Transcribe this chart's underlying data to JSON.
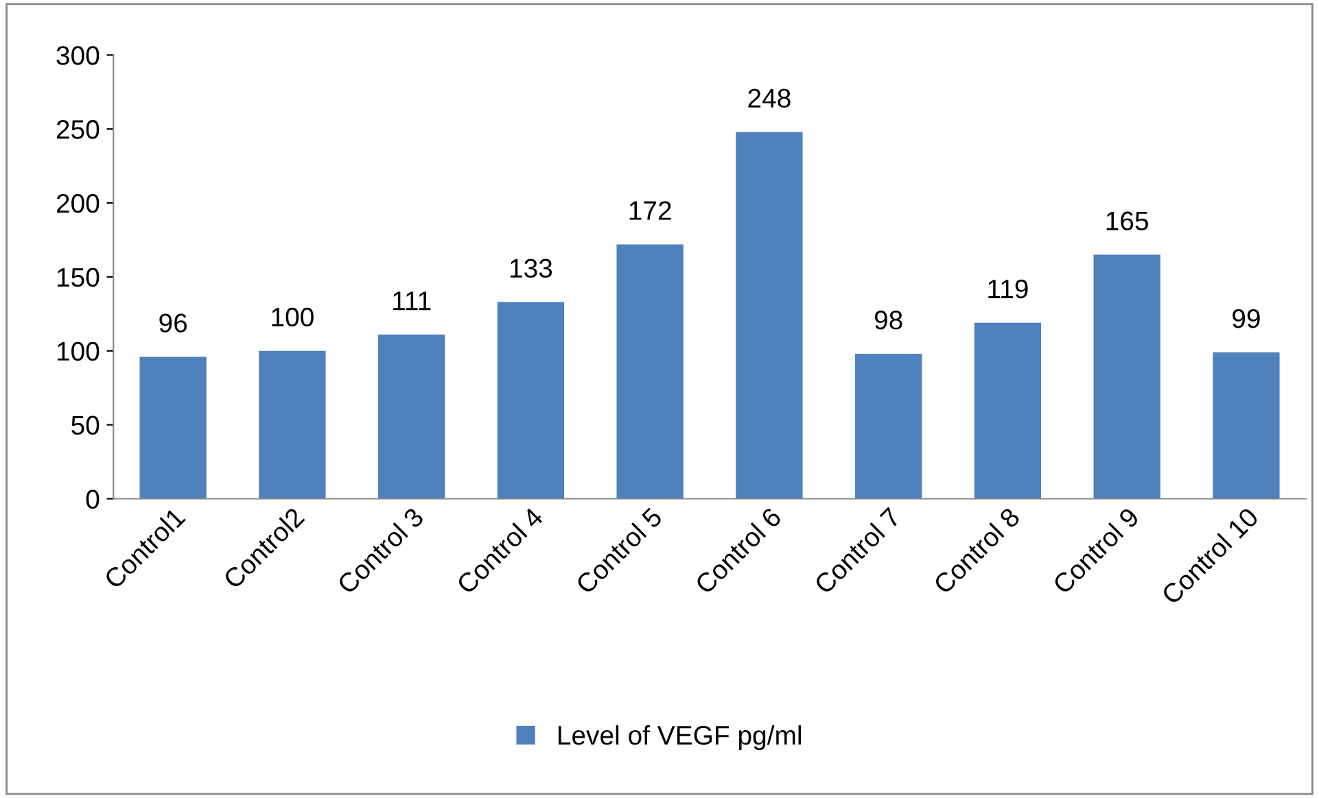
{
  "chart_data": {
    "type": "bar",
    "categories": [
      "Control1",
      "Control2",
      "Control 3",
      "Control 4",
      "Control 5",
      "Control 6",
      "Control 7",
      "Control 8",
      "Control 9",
      "Control 10"
    ],
    "series": [
      {
        "name": "Level of VEGF pg/ml",
        "color": "#4f81bd",
        "values": [
          96,
          100,
          111,
          133,
          172,
          248,
          98,
          119,
          165,
          99
        ]
      }
    ],
    "ylim": [
      0,
      300
    ],
    "yticks": [
      0,
      50,
      100,
      150,
      200,
      250,
      300
    ],
    "data_labels": true,
    "grid": false,
    "legend": "bottom"
  }
}
